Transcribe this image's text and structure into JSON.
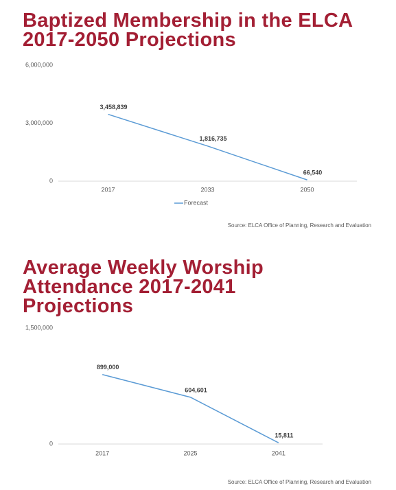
{
  "chart_data": [
    {
      "type": "line",
      "title": "Baptized Membership in the ELCA 2017-2050 Projections",
      "categories": [
        "2017",
        "2033",
        "2050"
      ],
      "series": [
        {
          "name": "Forecast",
          "color": "#5b9bd5",
          "values": [
            3458839,
            1816735,
            66540
          ],
          "value_labels": [
            "3,458,839",
            "1,816,735",
            "66,540"
          ]
        }
      ],
      "ylim": [
        0,
        6000000
      ],
      "yticks": [
        0,
        {
          "value": 3000000,
          "label": "3,000,000"
        },
        {
          "value": 6000000,
          "label": "6,000,000"
        }
      ],
      "legend": "bottom",
      "source": "Source:  ELCA Office of Planning, Research and Evaluation"
    },
    {
      "type": "line",
      "title": "Average Weekly Worship Attendance 2017-2041 Projections",
      "categories": [
        "2017",
        "2025",
        "2041"
      ],
      "series": [
        {
          "color": "#5b9bd5",
          "values": [
            899000,
            604601,
            15811
          ],
          "value_labels": [
            "899,000",
            "604,601",
            "15,811"
          ]
        }
      ],
      "ylim": [
        0,
        1500000
      ],
      "yticks": [
        0,
        {
          "value": 1500000,
          "label": "1,500,000"
        }
      ],
      "source": "Source:  ELCA Office of Planning, Research and Evaluation"
    }
  ]
}
